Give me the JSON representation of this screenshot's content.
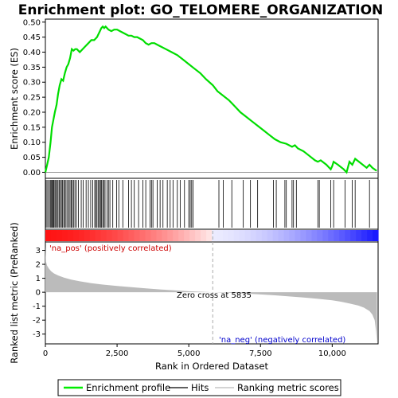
{
  "chart_data": {
    "type": "line",
    "title": "Enrichment plot: GO_TELOMERE_ORGANIZATION",
    "es_panel": {
      "ylabel": "Enrichment score (ES)",
      "ylim": [
        -0.02,
        0.51
      ],
      "yticks": [
        0.0,
        0.05,
        0.1,
        0.15,
        0.2,
        0.25,
        0.3,
        0.35,
        0.4,
        0.45,
        0.5
      ],
      "ytick_labels": [
        "0.00",
        "0.05",
        "0.10",
        "0.15",
        "0.20",
        "0.25",
        "0.30",
        "0.35",
        "0.40",
        "0.45",
        "0.50"
      ],
      "series": [
        {
          "name": "Enrichment profile",
          "color": "#00ee00",
          "x": [
            0,
            60,
            120,
            180,
            230,
            280,
            330,
            390,
            440,
            500,
            560,
            620,
            680,
            740,
            800,
            860,
            920,
            980,
            1040,
            1100,
            1200,
            1300,
            1400,
            1500,
            1600,
            1700,
            1800,
            1900,
            1950,
            2000,
            2050,
            2100,
            2200,
            2300,
            2400,
            2500,
            2600,
            2700,
            2800,
            2900,
            3000,
            3100,
            3200,
            3300,
            3400,
            3500,
            3600,
            3700,
            3800,
            3900,
            4000,
            4200,
            4400,
            4600,
            4800,
            5000,
            5200,
            5400,
            5600,
            5835,
            6000,
            6200,
            6400,
            6600,
            6800,
            7000,
            7200,
            7400,
            7600,
            7800,
            8000,
            8200,
            8400,
            8600,
            8700,
            8800,
            9000,
            9200,
            9400,
            9500,
            9600,
            9800,
            9950,
            10000,
            10050,
            10200,
            10400,
            10500,
            10600,
            10700,
            10800,
            11000,
            11200,
            11300,
            11400,
            11550
          ],
          "y": [
            0.0,
            0.025,
            0.05,
            0.1,
            0.15,
            0.175,
            0.2,
            0.225,
            0.26,
            0.29,
            0.31,
            0.305,
            0.33,
            0.35,
            0.36,
            0.38,
            0.41,
            0.405,
            0.41,
            0.41,
            0.4,
            0.41,
            0.42,
            0.43,
            0.44,
            0.44,
            0.45,
            0.47,
            0.48,
            0.485,
            0.48,
            0.485,
            0.475,
            0.47,
            0.475,
            0.475,
            0.47,
            0.465,
            0.46,
            0.455,
            0.455,
            0.45,
            0.45,
            0.445,
            0.44,
            0.43,
            0.425,
            0.43,
            0.43,
            0.425,
            0.42,
            0.41,
            0.4,
            0.39,
            0.375,
            0.36,
            0.345,
            0.33,
            0.31,
            0.29,
            0.27,
            0.255,
            0.24,
            0.22,
            0.2,
            0.185,
            0.17,
            0.155,
            0.14,
            0.125,
            0.11,
            0.1,
            0.095,
            0.085,
            0.09,
            0.08,
            0.07,
            0.055,
            0.04,
            0.035,
            0.04,
            0.025,
            0.01,
            0.02,
            0.035,
            0.025,
            0.01,
            0.0,
            0.035,
            0.025,
            0.045,
            0.03,
            0.015,
            0.025,
            0.015,
            0.005
          ]
        }
      ]
    },
    "hits_panel": {
      "label": "Hits",
      "positions": [
        30,
        80,
        130,
        170,
        200,
        230,
        260,
        290,
        330,
        360,
        400,
        440,
        480,
        520,
        560,
        600,
        640,
        680,
        720,
        770,
        820,
        860,
        900,
        940,
        980,
        1030,
        1080,
        1150,
        1250,
        1320,
        1420,
        1500,
        1580,
        1650,
        1720,
        1760,
        1800,
        1850,
        1890,
        1920,
        1960,
        2000,
        2040,
        2080,
        2150,
        2200,
        2250,
        2350,
        2480,
        2560,
        2700,
        2900,
        3000,
        3100,
        3250,
        3400,
        3500,
        3650,
        3700,
        3750,
        3900,
        4000,
        4100,
        4250,
        4350,
        4450,
        4600,
        4700,
        4850,
        5000,
        5050,
        5100,
        5150,
        6050,
        6200,
        6500,
        6900,
        7150,
        7400,
        7950,
        8050,
        8350,
        8400,
        8600,
        8650,
        8750,
        9500,
        9550,
        9950,
        10050,
        10450,
        10700,
        10800,
        11300
      ]
    },
    "ranking_panel": {
      "ylabel": "Ranked list metric (PreRanked)",
      "ylim": [
        -3.7,
        3.6
      ],
      "yticks": [
        3,
        2,
        1,
        0,
        -1,
        -2,
        -3
      ],
      "ytick_labels": [
        "3",
        "2",
        "1",
        "0",
        "-1",
        "-2",
        "-3"
      ],
      "fill_color": "#bbbbbb",
      "x": [
        0,
        20,
        60,
        120,
        200,
        300,
        450,
        650,
        900,
        1200,
        1600,
        2000,
        2500,
        3000,
        3500,
        4000,
        4500,
        5000,
        5500,
        5835,
        6500,
        7000,
        7500,
        8000,
        8500,
        9000,
        9500,
        10000,
        10300,
        10600,
        10900,
        11100,
        11300,
        11400,
        11480,
        11530,
        11560
      ],
      "values": [
        3.3,
        2.2,
        1.9,
        1.7,
        1.5,
        1.35,
        1.2,
        1.05,
        0.9,
        0.78,
        0.65,
        0.55,
        0.45,
        0.36,
        0.28,
        0.2,
        0.13,
        0.07,
        0.03,
        0.0,
        -0.05,
        -0.1,
        -0.16,
        -0.22,
        -0.3,
        -0.38,
        -0.47,
        -0.58,
        -0.68,
        -0.8,
        -0.95,
        -1.1,
        -1.35,
        -1.6,
        -2.0,
        -2.8,
        -3.6
      ]
    },
    "xlabel": "Rank in Ordered Dataset",
    "xlim": [
      0,
      11600
    ],
    "xticks": [
      0,
      2500,
      5000,
      7500,
      10000
    ],
    "xtick_labels": [
      "0",
      "2,500",
      "5,000",
      "7,500",
      "10,000"
    ],
    "zero_cross_rank": 5835,
    "annotations": {
      "pos": "'na_pos' (positively correlated)",
      "neg": "'na_neg' (negatively correlated)",
      "zero": "Zero cross at 5835"
    },
    "legend": {
      "placement": "bottom",
      "items": [
        {
          "label": "Enrichment profile",
          "color": "#00ee00"
        },
        {
          "label": "Hits",
          "color": "#000000"
        },
        {
          "label": "Ranking metric scores",
          "color": "#bbbbbb"
        }
      ]
    }
  }
}
